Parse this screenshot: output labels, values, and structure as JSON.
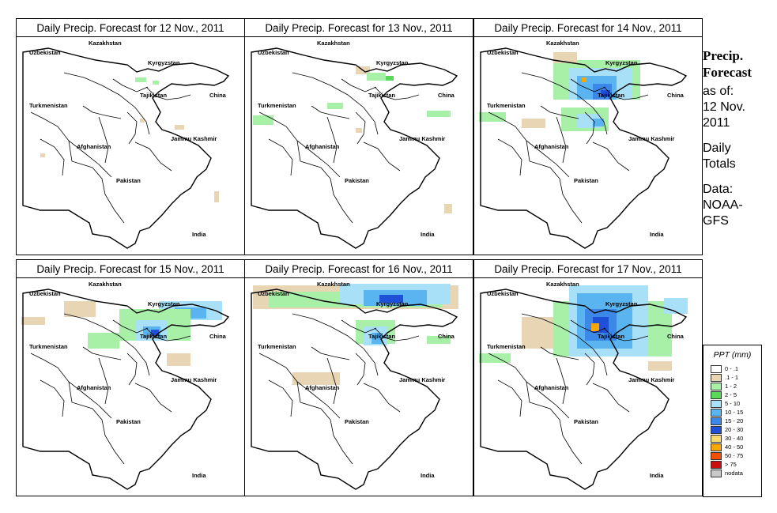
{
  "panels": [
    {
      "title": "Daily Precip. Forecast for  12 Nov., 2011"
    },
    {
      "title": "Daily Precip. Forecast for  13 Nov., 2011"
    },
    {
      "title": "Daily Precip. Forecast for  14 Nov., 2011"
    },
    {
      "title": "Daily Precip. Forecast for  15 Nov., 2011"
    },
    {
      "title": "Daily Precip. Forecast for  16 Nov., 2011"
    },
    {
      "title": "Daily Precip. Forecast for  17 Nov., 2011"
    }
  ],
  "place_labels": {
    "kazakhstan": "Kazakhstan",
    "uzbekistan": "Uzbekistan",
    "kyrgyzstan": "Kyrgyzstan",
    "tajikistan": "Tajikistan",
    "turkmenistan": "Turkmenistan",
    "china": "China",
    "jammu_kashmir": "Jammu Kashmir",
    "afghanistan": "Afghanistan",
    "pakistan": "Pakistan",
    "india": "India"
  },
  "side": {
    "title_line1": "Precip.",
    "title_line2": "Forecast",
    "asof_line1": "as of:",
    "asof_line2": "12 Nov.",
    "asof_line3": "2011",
    "daily_line1": "Daily",
    "daily_line2": "Totals",
    "data_line1": "Data:",
    "data_line2": "NOAA-",
    "data_line3": "GFS"
  },
  "legend": {
    "title": "PPT (mm)",
    "items": [
      {
        "label": "0 - .1",
        "color": "#ffffff"
      },
      {
        "label": ".1 - 1",
        "color": "#e8d5b4"
      },
      {
        "label": "1 - 2",
        "color": "#a8f0a8"
      },
      {
        "label": "2 - 5",
        "color": "#5ad85a"
      },
      {
        "label": "5 - 10",
        "color": "#a8e0f8"
      },
      {
        "label": "10 - 15",
        "color": "#5ab4f0"
      },
      {
        "label": "15 - 20",
        "color": "#3c88e8"
      },
      {
        "label": "20 - 30",
        "color": "#2050d8"
      },
      {
        "label": "30 - 40",
        "color": "#f8d870"
      },
      {
        "label": "40 - 50",
        "color": "#f8a800"
      },
      {
        "label": "50 - 75",
        "color": "#f05000"
      },
      {
        "label": "> 75",
        "color": "#c81010"
      },
      {
        "label": "nodata",
        "color": "#c8c8c8"
      }
    ]
  },
  "colors": {
    "trace": "#e8d5b4",
    "light_green": "#a8f0a8",
    "green": "#5ad85a",
    "light_blue": "#a8e0f8",
    "blue": "#5ab4f0",
    "mid_blue": "#3c88e8",
    "dark_blue": "#2050d8",
    "orange": "#f8a800"
  }
}
